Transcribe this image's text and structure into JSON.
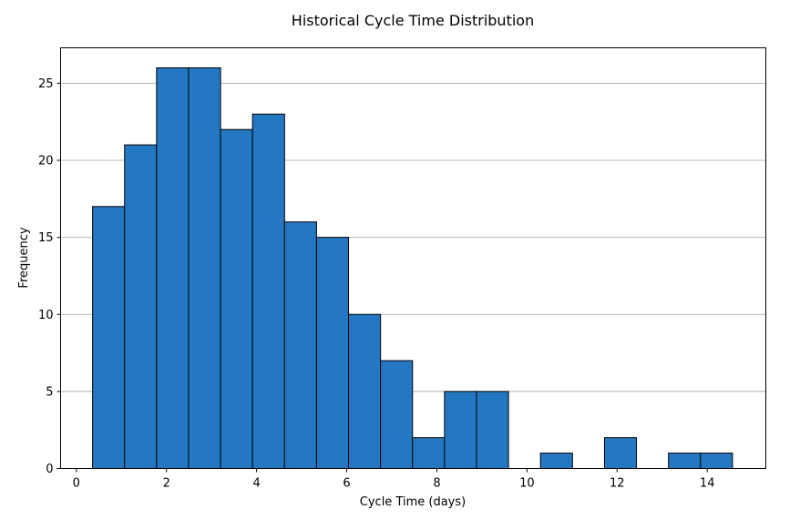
{
  "chart_data": {
    "type": "bar",
    "title": "Historical Cycle Time Distribution",
    "xlabel": "Cycle Time (days)",
    "ylabel": "Frequency",
    "xlim": [
      -0.35,
      15.3
    ],
    "ylim": [
      0,
      27.3
    ],
    "xticks": [
      0,
      2,
      4,
      6,
      8,
      10,
      12,
      14
    ],
    "yticks": [
      0,
      5,
      10,
      15,
      20,
      25
    ],
    "bins": [
      {
        "x0": 0.36,
        "x1": 1.07,
        "count": 17
      },
      {
        "x0": 1.07,
        "x1": 1.78,
        "count": 21
      },
      {
        "x0": 1.78,
        "x1": 2.49,
        "count": 26
      },
      {
        "x0": 2.49,
        "x1": 3.2,
        "count": 26
      },
      {
        "x0": 3.2,
        "x1": 3.91,
        "count": 22
      },
      {
        "x0": 3.91,
        "x1": 4.62,
        "count": 23
      },
      {
        "x0": 4.62,
        "x1": 5.33,
        "count": 16
      },
      {
        "x0": 5.33,
        "x1": 6.04,
        "count": 15
      },
      {
        "x0": 6.04,
        "x1": 6.75,
        "count": 10
      },
      {
        "x0": 6.75,
        "x1": 7.46,
        "count": 7
      },
      {
        "x0": 7.46,
        "x1": 8.17,
        "count": 2
      },
      {
        "x0": 8.17,
        "x1": 8.88,
        "count": 5
      },
      {
        "x0": 8.88,
        "x1": 9.59,
        "count": 5
      },
      {
        "x0": 9.59,
        "x1": 10.3,
        "count": 0
      },
      {
        "x0": 10.3,
        "x1": 11.01,
        "count": 1
      },
      {
        "x0": 11.01,
        "x1": 11.72,
        "count": 0
      },
      {
        "x0": 11.72,
        "x1": 12.43,
        "count": 2
      },
      {
        "x0": 12.43,
        "x1": 13.14,
        "count": 0
      },
      {
        "x0": 13.14,
        "x1": 13.85,
        "count": 1
      },
      {
        "x0": 13.85,
        "x1": 14.56,
        "count": 1
      }
    ],
    "grid": "y-axis",
    "bar_color": "#2478c1",
    "edge_color": "#000000",
    "grid_color": "#b0b0b0"
  }
}
